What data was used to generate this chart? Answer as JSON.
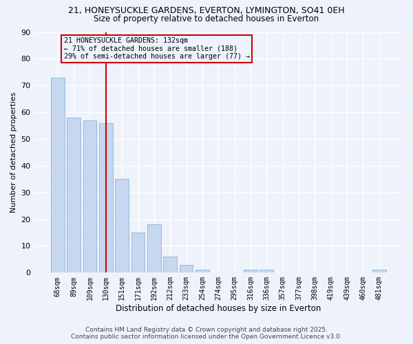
{
  "title1": "21, HONEYSUCKLE GARDENS, EVERTON, LYMINGTON, SO41 0EH",
  "title2": "Size of property relative to detached houses in Everton",
  "xlabel": "Distribution of detached houses by size in Everton",
  "ylabel": "Number of detached properties",
  "categories": [
    "68sqm",
    "89sqm",
    "109sqm",
    "130sqm",
    "151sqm",
    "171sqm",
    "192sqm",
    "212sqm",
    "233sqm",
    "254sqm",
    "274sqm",
    "295sqm",
    "316sqm",
    "336sqm",
    "357sqm",
    "377sqm",
    "398sqm",
    "419sqm",
    "439sqm",
    "460sqm",
    "481sqm"
  ],
  "values": [
    73,
    58,
    57,
    56,
    35,
    15,
    18,
    6,
    3,
    1,
    0,
    0,
    1,
    1,
    0,
    0,
    0,
    0,
    0,
    0,
    1
  ],
  "bar_color": "#c5d8f0",
  "bar_edge_color": "#8ab4d8",
  "vline_x": 3,
  "vline_color": "#cc0000",
  "annotation_title": "21 HONEYSUCKLE GARDENS: 132sqm",
  "annotation_line1": "← 71% of detached houses are smaller (188)",
  "annotation_line2": "29% of semi-detached houses are larger (77) →",
  "annotation_box_color": "#cc0000",
  "background_color": "#eef2fb",
  "grid_color": "#ffffff",
  "ylim": [
    0,
    90
  ],
  "yticks": [
    0,
    10,
    20,
    30,
    40,
    50,
    60,
    70,
    80,
    90
  ],
  "footer1": "Contains HM Land Registry data © Crown copyright and database right 2025.",
  "footer2": "Contains public sector information licensed under the Open Government Licence v3.0."
}
